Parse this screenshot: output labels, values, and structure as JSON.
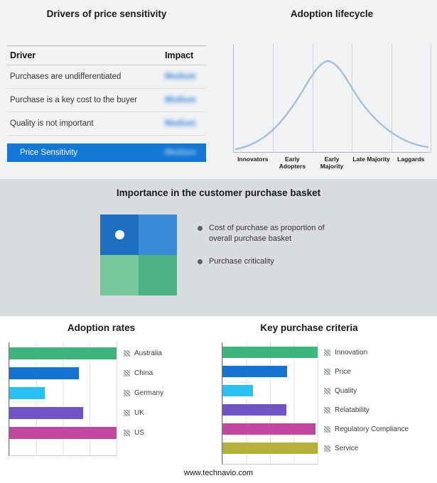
{
  "colors": {
    "accent_blue": "#1377d6"
  },
  "footer": {
    "url": "www.technavio.com"
  },
  "purchase_basket": {
    "title": "Importance in the customer purchase basket",
    "legend": [
      "Cost of purchase as proportion of overall purchase basket",
      "Purchase criticality"
    ],
    "quadrant_colors": {
      "top_left": "#1d6fc2",
      "top_right": "#3a8ad8",
      "bottom_left": "#79c79f",
      "bottom_right": "#4db384"
    }
  },
  "chart_data": [
    {
      "type": "table",
      "title": "Drivers of price sensitivity",
      "columns": [
        "Driver",
        "Impact"
      ],
      "rows": [
        [
          "Purchases are undifferentiated",
          "Medium"
        ],
        [
          "Purchase is a key cost to the buyer",
          "Medium"
        ],
        [
          "Quality is not important",
          "Medium"
        ],
        [
          "Price Sensitivity",
          "Medium"
        ]
      ],
      "impact_values_blurred": true
    },
    {
      "type": "line",
      "title": "Adoption lifecycle",
      "categories": [
        "Innovators",
        "Early Adopters",
        "Early Majority",
        "Late Majority",
        "Laggards"
      ],
      "curve": "bell",
      "curve_color": "#a9c0d8"
    },
    {
      "type": "bar",
      "title": "Adoption rates",
      "orientation": "horizontal",
      "categories": [
        "Australia",
        "China",
        "Germany",
        "UK",
        "US"
      ],
      "values": [
        100,
        65,
        33,
        69,
        100
      ],
      "colors": [
        "#3eb57f",
        "#1472d0",
        "#29c1f3",
        "#7153c6",
        "#c4489f"
      ],
      "xlim": [
        0,
        100
      ],
      "grid": true,
      "legend_position": "right"
    },
    {
      "type": "bar",
      "title": "Key purchase criteria",
      "orientation": "horizontal",
      "categories": [
        "Innovation",
        "Price",
        "Quality",
        "Relatability",
        "Regulatory Compliance",
        "Service"
      ],
      "values": [
        100,
        68,
        32,
        67,
        98,
        100
      ],
      "colors": [
        "#3eb57f",
        "#1472d0",
        "#29c1f3",
        "#7153c6",
        "#c4489f",
        "#b6b13b"
      ],
      "xlim": [
        0,
        100
      ],
      "grid": true,
      "legend_position": "right"
    }
  ]
}
